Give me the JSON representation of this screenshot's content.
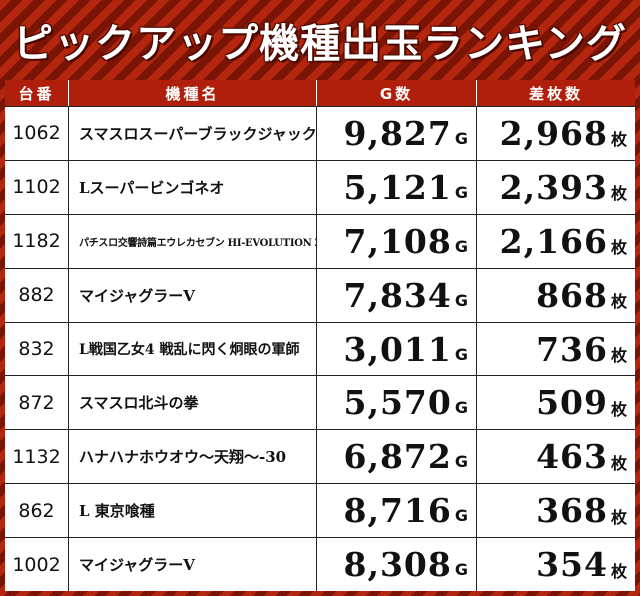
{
  "title": "ピックアップ機種出玉ランキング",
  "headers": {
    "machine_no": "台番",
    "machine_name": "機種名",
    "games": "G数",
    "diff": "差枚数"
  },
  "units": {
    "games": "G",
    "diff": "枚"
  },
  "colors": {
    "header_bg": "#b01f0b",
    "stripe_dark": "#7a1405",
    "stripe_light": "#b4260e"
  },
  "rows": [
    {
      "no": "1062",
      "name": "スマスロスーパーブラックジャック",
      "games": "9,827",
      "diff": "2,968"
    },
    {
      "no": "1102",
      "name": "Lスーパービンゴネオ",
      "games": "5,121",
      "diff": "2,393"
    },
    {
      "no": "1182",
      "name": "パチスロ交響詩篇エウレカセブン HI-EVOLUTION ZERO TYPE-ART",
      "games": "7,108",
      "diff": "2,166"
    },
    {
      "no": "882",
      "name": "マイジャグラーV",
      "games": "7,834",
      "diff": "868"
    },
    {
      "no": "832",
      "name": "L戦国乙女4 戦乱に閃く炯眼の軍師",
      "games": "3,011",
      "diff": "736"
    },
    {
      "no": "872",
      "name": "スマスロ北斗の拳",
      "games": "5,570",
      "diff": "509"
    },
    {
      "no": "1132",
      "name": "ハナハナホウオウ～天翔～-30",
      "games": "6,872",
      "diff": "463"
    },
    {
      "no": "862",
      "name": "L 東京喰種",
      "games": "8,716",
      "diff": "368"
    },
    {
      "no": "1002",
      "name": "マイジャグラーV",
      "games": "8,308",
      "diff": "354"
    }
  ]
}
